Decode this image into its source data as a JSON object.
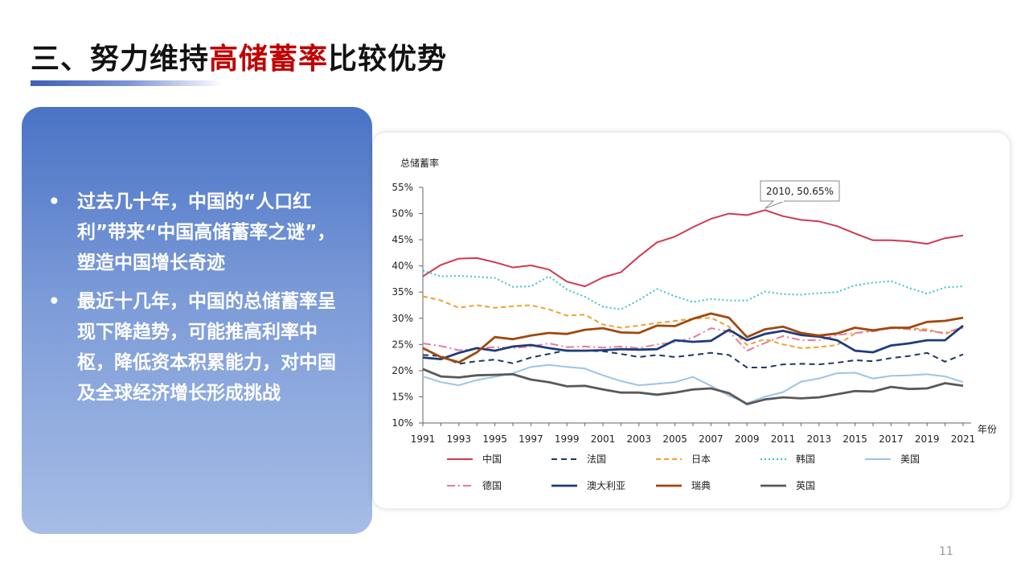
{
  "slide": {
    "title_prefix": "三、努力维持",
    "title_highlight": "高储蓄率",
    "title_suffix": "比较优势",
    "bullet_symbol": "•",
    "bullets": [
      "过去几十年，中国的“人口红利”带来“中国高储蓄率之谜”，塑造中国增长奇迹",
      "最近十几年，中国的总储蓄率呈现下降趋势，可能推高利率中枢，降低资本积累能力，对中国及全球经济增长形成挑战"
    ],
    "page_number": "11",
    "colors": {
      "title_highlight": "#c00000",
      "panel_top": "#4a73c6",
      "panel_bottom": "#a7bde6"
    }
  },
  "chart_data": {
    "type": "line",
    "ylabel": "总储蓄率",
    "xlabel": "年份",
    "ylim": [
      10,
      55
    ],
    "yticks": [
      "10%",
      "15%",
      "20%",
      "25%",
      "30%",
      "35%",
      "40%",
      "45%",
      "50%",
      "55%"
    ],
    "x": [
      1991,
      1992,
      1993,
      1994,
      1995,
      1996,
      1997,
      1998,
      1999,
      2000,
      2001,
      2002,
      2003,
      2004,
      2005,
      2006,
      2007,
      2008,
      2009,
      2010,
      2011,
      2012,
      2013,
      2014,
      2015,
      2016,
      2017,
      2018,
      2019,
      2020,
      2021
    ],
    "xticks": [
      "1991",
      "1993",
      "1995",
      "1997",
      "1999",
      "2001",
      "2003",
      "2005",
      "2007",
      "2009",
      "2011",
      "2013",
      "2015",
      "2017",
      "2019",
      "2021"
    ],
    "annotation": {
      "text": "2010, 50.65%",
      "x": 2010,
      "y": 50.65
    },
    "grid": false,
    "legend": "bottom",
    "series": [
      {
        "name": "中国",
        "color": "#d0394f",
        "dash": "",
        "values": [
          38,
          40.2,
          41.4,
          41.5,
          40.7,
          39.7,
          40.1,
          39.3,
          37,
          36.1,
          37.8,
          38.8,
          41.8,
          44.5,
          45.6,
          47.4,
          49,
          50,
          49.7,
          50.65,
          49.5,
          48.8,
          48.5,
          47.6,
          46.2,
          44.9,
          44.9,
          44.7,
          44.2,
          45.3,
          45.8
        ]
      },
      {
        "name": "法国",
        "color": "#1f3864",
        "dash": "7,5",
        "values": [
          23,
          22.8,
          21.3,
          21.8,
          22.1,
          21.4,
          22.5,
          23.2,
          23.9,
          23.8,
          23.7,
          23.2,
          22.6,
          23,
          22.6,
          23,
          23.4,
          23,
          20.6,
          20.6,
          21.2,
          21.3,
          21.2,
          21.5,
          22,
          21.8,
          22.4,
          22.8,
          23.4,
          21.7,
          23.1
        ]
      },
      {
        "name": "日本",
        "color": "#f0a030",
        "dash": "6,4",
        "values": [
          34.2,
          33.4,
          32,
          32.5,
          32,
          32.3,
          32.5,
          31.7,
          30.5,
          30.7,
          28.8,
          28.2,
          28.6,
          29.1,
          29.5,
          29.9,
          30.1,
          28.4,
          24.9,
          26,
          25,
          24.3,
          24.5,
          24.9,
          27.1,
          27.7,
          28.1,
          28.1,
          27.9,
          27,
          28.2
        ]
      },
      {
        "name": "韩国",
        "color": "#3fc1c9",
        "dash": "2,3",
        "values": [
          39.1,
          38,
          38.1,
          37.9,
          37.7,
          36,
          36.1,
          38,
          35.5,
          34.1,
          32.2,
          31.7,
          33.5,
          35.6,
          34.2,
          33.1,
          33.7,
          33.4,
          33.4,
          35.1,
          34.6,
          34.5,
          34.8,
          35,
          36.3,
          36.8,
          37.1,
          35.8,
          34.7,
          35.9,
          36.1
        ]
      },
      {
        "name": "美国",
        "color": "#9ec3e6",
        "dash": "",
        "values": [
          18.9,
          17.8,
          17.2,
          18.2,
          18.8,
          19.5,
          20.7,
          21.1,
          20.7,
          20.4,
          19.1,
          18,
          17.2,
          17.5,
          17.8,
          18.8,
          17.1,
          15.2,
          13.8,
          15,
          15.9,
          17.9,
          18.5,
          19.5,
          19.6,
          18.5,
          19,
          19.1,
          19.3,
          18.9,
          17.8
        ]
      },
      {
        "name": "德国",
        "color": "#e87a9a",
        "dash": "10,4,2,4",
        "values": [
          25.2,
          24.7,
          23.9,
          24.2,
          24.5,
          24.3,
          24.6,
          25.2,
          24.5,
          24.6,
          24.4,
          24.6,
          24.3,
          25,
          25.4,
          26.3,
          28.1,
          27.5,
          23.8,
          25.3,
          26.6,
          25.8,
          25.8,
          26.8,
          27.2,
          27.5,
          28.1,
          27.9,
          27.6,
          27.2,
          28.3
        ]
      },
      {
        "name": "澳大利亚",
        "color": "#1f3c7a",
        "dash": "",
        "values": [
          22.5,
          22.2,
          23.4,
          24.3,
          23.8,
          24.6,
          24.9,
          24.3,
          23.8,
          23.8,
          23.9,
          24.1,
          24,
          24.1,
          25.8,
          25.5,
          25.7,
          27.8,
          25.8,
          27,
          27.6,
          26.8,
          26.5,
          25.8,
          23.8,
          23.5,
          24.8,
          25.2,
          25.8,
          25.8,
          28.6
        ]
      },
      {
        "name": "瑞典",
        "color": "#a0480f",
        "dash": "",
        "values": [
          24.3,
          22.6,
          21.6,
          23.5,
          26.4,
          26,
          26.7,
          27.2,
          27,
          27.8,
          28.1,
          27.3,
          27.2,
          28.6,
          28.5,
          29.9,
          30.9,
          30.1,
          26.4,
          27.9,
          28.4,
          27.2,
          26.7,
          27.1,
          28.2,
          27.7,
          28.2,
          28.2,
          29.3,
          29.5,
          30.1
        ]
      },
      {
        "name": "英国",
        "color": "#595959",
        "dash": "",
        "values": [
          20.3,
          18.9,
          18.7,
          19.1,
          19.2,
          19.3,
          18.3,
          17.8,
          17,
          17.1,
          16.4,
          15.8,
          15.8,
          15.4,
          15.8,
          16.4,
          16.6,
          15.7,
          13.6,
          14.5,
          14.9,
          14.7,
          14.9,
          15.5,
          16.1,
          16,
          16.9,
          16.5,
          16.6,
          17.6,
          17.1
        ]
      }
    ]
  }
}
